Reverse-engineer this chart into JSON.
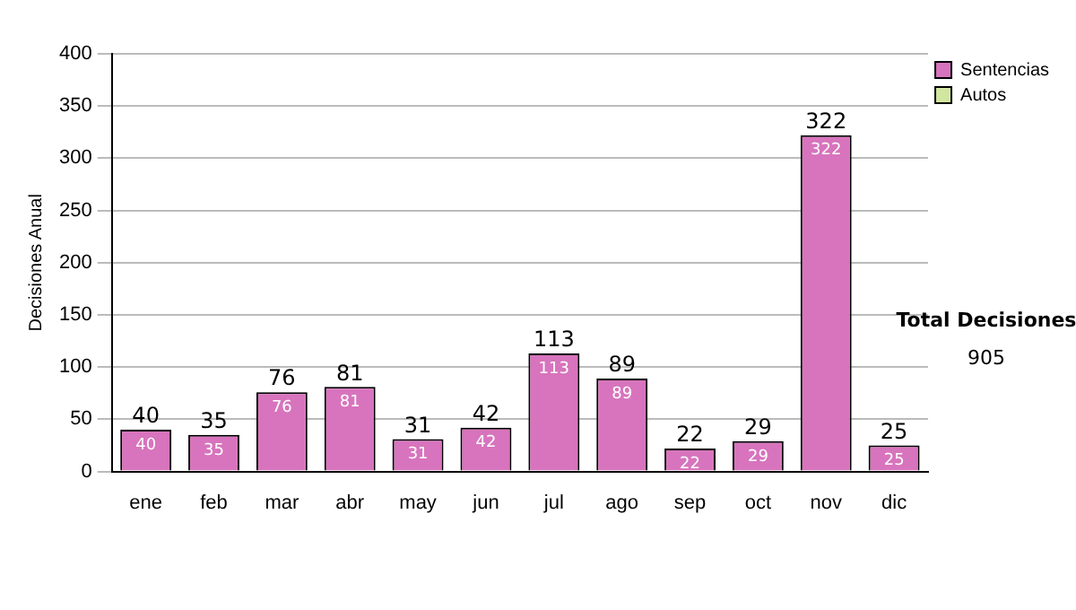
{
  "chart_data": {
    "type": "bar",
    "stacked": true,
    "ylabel": "Decisiones Anual",
    "categories": [
      "ene",
      "feb",
      "mar",
      "abr",
      "may",
      "jun",
      "jul",
      "ago",
      "sep",
      "oct",
      "nov",
      "dic"
    ],
    "series": [
      {
        "name": "Sentencias",
        "color": "#d774bd",
        "values": [
          40,
          35,
          76,
          81,
          31,
          42,
          113,
          89,
          22,
          29,
          322,
          25
        ],
        "value_labels": [
          "40",
          "35",
          "76",
          "81",
          "31",
          "42",
          "113",
          "89",
          "22",
          "29",
          "322",
          "25"
        ]
      },
      {
        "name": "Autos",
        "color": "#d2e6a0",
        "values": [
          0,
          0,
          0,
          0,
          0,
          0,
          0,
          0,
          0,
          0,
          0,
          0
        ],
        "value_labels": [
          null,
          null,
          null,
          null,
          null,
          null,
          null,
          null,
          null,
          null,
          null,
          null
        ]
      }
    ],
    "totals": [
      "40",
      "35",
      "76",
      "81",
      "31",
      "42",
      "113",
      "89",
      "22",
      "29",
      "322",
      "25"
    ],
    "ylim": [
      0,
      400
    ],
    "yticks": [
      0,
      50,
      100,
      150,
      200,
      250,
      300,
      350,
      400
    ],
    "grid": "y",
    "legend": "right",
    "annotations": [
      "Total Decisiones",
      "905"
    ]
  }
}
